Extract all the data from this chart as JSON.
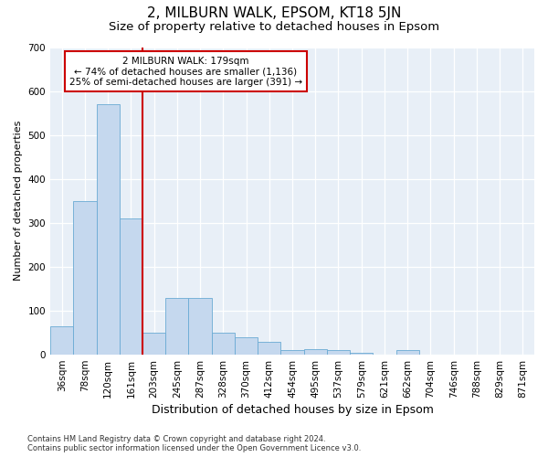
{
  "title": "2, MILBURN WALK, EPSOM, KT18 5JN",
  "subtitle": "Size of property relative to detached houses in Epsom",
  "xlabel": "Distribution of detached houses by size in Epsom",
  "ylabel": "Number of detached properties",
  "categories": [
    "36sqm",
    "78sqm",
    "120sqm",
    "161sqm",
    "203sqm",
    "245sqm",
    "287sqm",
    "328sqm",
    "370sqm",
    "412sqm",
    "454sqm",
    "495sqm",
    "537sqm",
    "579sqm",
    "621sqm",
    "662sqm",
    "704sqm",
    "746sqm",
    "788sqm",
    "829sqm",
    "871sqm"
  ],
  "values": [
    65,
    350,
    570,
    310,
    50,
    130,
    130,
    50,
    40,
    30,
    10,
    12,
    10,
    5,
    0,
    10,
    0,
    0,
    0,
    0,
    0
  ],
  "bar_color": "#c5d8ee",
  "bar_edge_color": "#6aaad4",
  "background_color": "#e8eff7",
  "vline_color": "#cc0000",
  "annotation_text": "2 MILBURN WALK: 179sqm\n← 74% of detached houses are smaller (1,136)\n25% of semi-detached houses are larger (391) →",
  "annotation_box_facecolor": "#ffffff",
  "annotation_box_edgecolor": "#cc0000",
  "ylim": [
    0,
    700
  ],
  "yticks": [
    0,
    100,
    200,
    300,
    400,
    500,
    600,
    700
  ],
  "footnote": "Contains HM Land Registry data © Crown copyright and database right 2024.\nContains public sector information licensed under the Open Government Licence v3.0.",
  "title_fontsize": 11,
  "subtitle_fontsize": 9.5,
  "xlabel_fontsize": 9,
  "ylabel_fontsize": 8,
  "tick_fontsize": 7.5,
  "annot_fontsize": 7.5,
  "footnote_fontsize": 6
}
